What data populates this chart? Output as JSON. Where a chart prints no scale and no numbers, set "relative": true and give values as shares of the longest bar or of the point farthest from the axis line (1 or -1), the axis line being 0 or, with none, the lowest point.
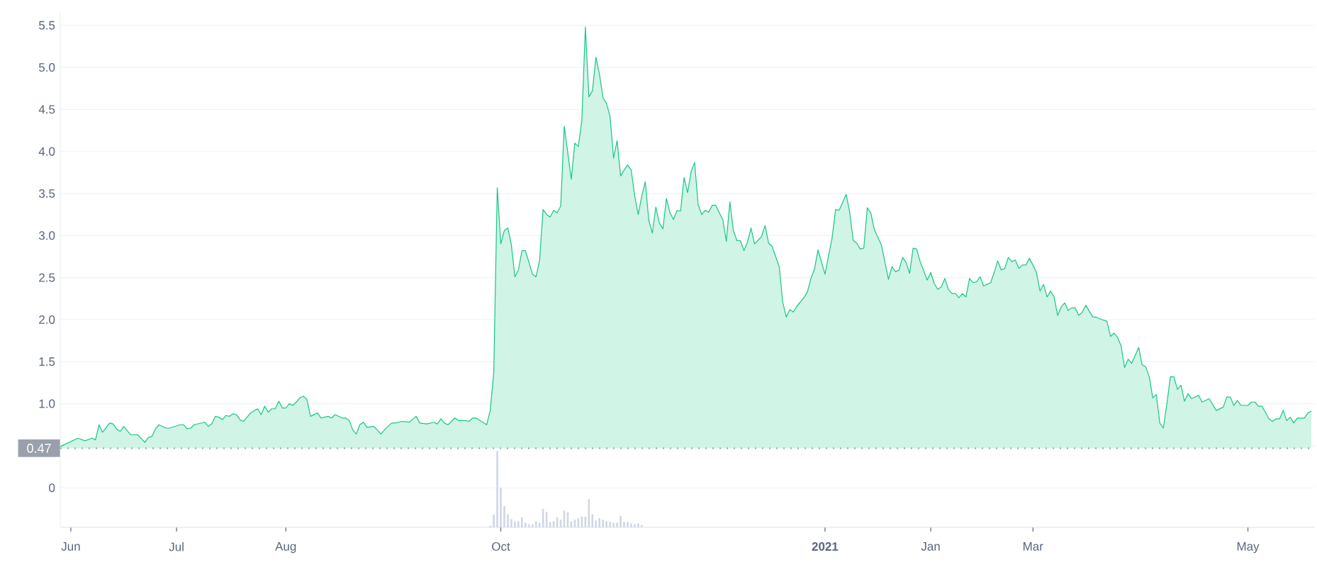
{
  "chart_data": [
    {
      "type": "area",
      "color": "#16c784",
      "grid": "y",
      "tick_labels": "y",
      "xlim": [
        "2020-05-29",
        "2021-05-20"
      ],
      "ylim": [
        -0.47,
        5.65
      ],
      "yticks": [
        0,
        {
          "value": 0.5,
          "label": null
        },
        {
          "value": 1,
          "label": "1.0"
        },
        1.5,
        {
          "value": 2,
          "label": "2.0"
        },
        2.5,
        {
          "value": 3,
          "label": "3.0"
        },
        3.5,
        {
          "value": 4,
          "label": "4.0"
        },
        4.5,
        {
          "value": 5,
          "label": "5.0"
        },
        5.5
      ],
      "ref_lines": [
        {
          "axis": "y",
          "value": 0.47,
          "label": "0.47",
          "line_style": "dotted",
          "color": "#9aa0ab"
        }
      ],
      "x": [
        "2020-05-29",
        "2020-06-03",
        "2020-06-05",
        "2020-06-07",
        "2020-06-08",
        "2020-06-09",
        "2020-06-10",
        "2020-06-12",
        "2020-06-13",
        "2020-06-14",
        "2020-06-15",
        "2020-06-16",
        "2020-06-18",
        "2020-06-20",
        "2020-06-22",
        "2020-06-23",
        "2020-06-24",
        "2020-06-25",
        "2020-06-26",
        "2020-06-28",
        "2020-06-29",
        "2020-07-02",
        "2020-07-03",
        "2020-07-04",
        "2020-07-05",
        "2020-07-06",
        "2020-07-09",
        "2020-07-10",
        "2020-07-11",
        "2020-07-12",
        "2020-07-13",
        "2020-07-14",
        "2020-07-15",
        "2020-07-16",
        "2020-07-17",
        "2020-07-18",
        "2020-07-19",
        "2020-07-20",
        "2020-07-21",
        "2020-07-22",
        "2020-07-24",
        "2020-07-25",
        "2020-07-26",
        "2020-07-27",
        "2020-07-28",
        "2020-07-29",
        "2020-07-30",
        "2020-07-31",
        "2020-08-01",
        "2020-08-02",
        "2020-08-03",
        "2020-08-04",
        "2020-08-05",
        "2020-08-06",
        "2020-08-07",
        "2020-08-08",
        "2020-08-10",
        "2020-08-11",
        "2020-08-13",
        "2020-08-14",
        "2020-08-15",
        "2020-08-17",
        "2020-08-18",
        "2020-08-19",
        "2020-08-20",
        "2020-08-21",
        "2020-08-22",
        "2020-08-23",
        "2020-08-24",
        "2020-08-26",
        "2020-08-28",
        "2020-08-29",
        "2020-08-31",
        "2020-09-01",
        "2020-09-03",
        "2020-09-05",
        "2020-09-07",
        "2020-09-08",
        "2020-09-10",
        "2020-09-12",
        "2020-09-13",
        "2020-09-14",
        "2020-09-15",
        "2020-09-16",
        "2020-09-18",
        "2020-09-19",
        "2020-09-21",
        "2020-09-22",
        "2020-09-23",
        "2020-09-24",
        "2020-09-27",
        "2020-09-28",
        "2020-09-29",
        "2020-09-30",
        "2020-10-01",
        "2020-10-02",
        "2020-10-03",
        "2020-10-04",
        "2020-10-05",
        "2020-10-06",
        "2020-10-07",
        "2020-10-08",
        "2020-10-09",
        "2020-10-10",
        "2020-10-11",
        "2020-10-12",
        "2020-10-13",
        "2020-10-14",
        "2020-10-15",
        "2020-10-16",
        "2020-10-17",
        "2020-10-18",
        "2020-10-19",
        "2020-10-20",
        "2020-10-21",
        "2020-10-22",
        "2020-10-23",
        "2020-10-24",
        "2020-10-25",
        "2020-10-26",
        "2020-10-27",
        "2020-10-28",
        "2020-10-29",
        "2020-10-30",
        "2020-10-31",
        "2020-11-01",
        "2020-11-02",
        "2020-11-03",
        "2020-11-04",
        "2020-11-05",
        "2020-11-06",
        "2020-11-07",
        "2020-11-08",
        "2020-11-09",
        "2020-11-10",
        "2020-11-11",
        "2020-11-12",
        "2020-11-13",
        "2020-11-14",
        "2020-11-15",
        "2020-11-16",
        "2020-11-17",
        "2020-11-18",
        "2020-11-19",
        "2020-11-20",
        "2020-11-21",
        "2020-11-22",
        "2020-11-23",
        "2020-11-24",
        "2020-11-25",
        "2020-11-26",
        "2020-11-27",
        "2020-11-28",
        "2020-11-29",
        "2020-11-30",
        "2020-12-01",
        "2020-12-02",
        "2020-12-03",
        "2020-12-04",
        "2020-12-05",
        "2020-12-06",
        "2020-12-07",
        "2020-12-08",
        "2020-12-09",
        "2020-12-10",
        "2020-12-11",
        "2020-12-12",
        "2020-12-14",
        "2020-12-15",
        "2020-12-16",
        "2020-12-17",
        "2020-12-19",
        "2020-12-20",
        "2020-12-21",
        "2020-12-22",
        "2020-12-23",
        "2020-12-24",
        "2020-12-26",
        "2020-12-27",
        "2020-12-28",
        "2020-12-29",
        "2020-12-30",
        "2021-01-01",
        "2021-01-02",
        "2021-01-03",
        "2021-01-04",
        "2021-01-05",
        "2021-01-07",
        "2021-01-08",
        "2021-01-09",
        "2021-01-10",
        "2021-01-11",
        "2021-01-12",
        "2021-01-13",
        "2021-01-14",
        "2021-01-15",
        "2021-01-17",
        "2021-01-19",
        "2021-01-20",
        "2021-01-21",
        "2021-01-22",
        "2021-01-23",
        "2021-01-24",
        "2021-01-25",
        "2021-01-26",
        "2021-01-27",
        "2021-01-28",
        "2021-01-30",
        "2021-01-31",
        "2021-02-01",
        "2021-02-02",
        "2021-02-03",
        "2021-02-04",
        "2021-02-05",
        "2021-02-06",
        "2021-02-07",
        "2021-02-08",
        "2021-02-09",
        "2021-02-10",
        "2021-02-11",
        "2021-02-12",
        "2021-02-13",
        "2021-02-14",
        "2021-02-15",
        "2021-02-16",
        "2021-02-17",
        "2021-02-18",
        "2021-02-19",
        "2021-02-20",
        "2021-02-21",
        "2021-02-22",
        "2021-02-23",
        "2021-02-24",
        "2021-02-25",
        "2021-02-26",
        "2021-02-27",
        "2021-02-28",
        "2021-03-01",
        "2021-03-02",
        "2021-03-03",
        "2021-03-04",
        "2021-03-05",
        "2021-03-06",
        "2021-03-07",
        "2021-03-08",
        "2021-03-09",
        "2021-03-10",
        "2021-03-11",
        "2021-03-12",
        "2021-03-13",
        "2021-03-14",
        "2021-03-15",
        "2021-03-16",
        "2021-03-17",
        "2021-03-18",
        "2021-03-19",
        "2021-03-20",
        "2021-03-22",
        "2021-03-23",
        "2021-03-24",
        "2021-03-25",
        "2021-03-26",
        "2021-03-27",
        "2021-03-28",
        "2021-03-29",
        "2021-03-31",
        "2021-04-01",
        "2021-04-02",
        "2021-04-03",
        "2021-04-04",
        "2021-04-05",
        "2021-04-06",
        "2021-04-07",
        "2021-04-08",
        "2021-04-09",
        "2021-04-10",
        "2021-04-11",
        "2021-04-12",
        "2021-04-13",
        "2021-04-14",
        "2021-04-15",
        "2021-04-17",
        "2021-04-18",
        "2021-04-20",
        "2021-04-22",
        "2021-04-24",
        "2021-04-25",
        "2021-04-26",
        "2021-04-27",
        "2021-04-28",
        "2021-04-29",
        "2021-05-01",
        "2021-05-02",
        "2021-05-03",
        "2021-05-04",
        "2021-05-05",
        "2021-05-07",
        "2021-05-08",
        "2021-05-09",
        "2021-05-10",
        "2021-05-11",
        "2021-05-12",
        "2021-05-13",
        "2021-05-14",
        "2021-05-15",
        "2021-05-16",
        "2021-05-17",
        "2021-05-18",
        "2021-05-19"
      ],
      "values": [
        0.49,
        0.59,
        0.56,
        0.59,
        0.57,
        0.75,
        0.66,
        0.77,
        0.76,
        0.7,
        0.67,
        0.73,
        0.63,
        0.63,
        0.54,
        0.6,
        0.61,
        0.7,
        0.75,
        0.71,
        0.71,
        0.75,
        0.75,
        0.7,
        0.71,
        0.75,
        0.78,
        0.73,
        0.76,
        0.85,
        0.84,
        0.81,
        0.86,
        0.85,
        0.88,
        0.87,
        0.81,
        0.79,
        0.84,
        0.89,
        0.94,
        0.87,
        0.97,
        0.9,
        0.94,
        0.94,
        1.03,
        0.95,
        0.95,
        1.0,
        0.98,
        1.02,
        1.07,
        1.09,
        1.05,
        0.85,
        0.89,
        0.83,
        0.85,
        0.83,
        0.87,
        0.83,
        0.83,
        0.8,
        0.69,
        0.64,
        0.75,
        0.78,
        0.72,
        0.73,
        0.64,
        0.69,
        0.77,
        0.77,
        0.79,
        0.78,
        0.85,
        0.77,
        0.76,
        0.78,
        0.76,
        0.82,
        0.77,
        0.75,
        0.83,
        0.8,
        0.8,
        0.79,
        0.83,
        0.83,
        0.75,
        0.92,
        1.37,
        3.57,
        2.9,
        3.06,
        3.09,
        2.89,
        2.51,
        2.59,
        2.82,
        2.82,
        2.68,
        2.54,
        2.51,
        2.7,
        3.31,
        3.25,
        3.22,
        3.3,
        3.27,
        3.35,
        4.3,
        3.99,
        3.67,
        4.1,
        4.06,
        4.37,
        5.48,
        4.65,
        4.72,
        5.12,
        4.92,
        4.64,
        4.57,
        4.42,
        3.92,
        4.13,
        3.71,
        3.78,
        3.84,
        3.78,
        3.47,
        3.25,
        3.47,
        3.64,
        3.18,
        3.03,
        3.34,
        3.15,
        3.08,
        3.44,
        3.27,
        3.19,
        3.3,
        3.29,
        3.69,
        3.51,
        3.76,
        3.87,
        3.37,
        3.25,
        3.3,
        3.28,
        3.36,
        3.36,
        3.27,
        3.19,
        2.93,
        3.4,
        3.06,
        2.94,
        2.94,
        2.82,
        2.92,
        3.09,
        2.9,
        2.99,
        3.12,
        2.91,
        2.87,
        2.63,
        2.21,
        2.03,
        2.12,
        2.09,
        2.16,
        2.26,
        2.33,
        2.49,
        2.6,
        2.83,
        2.54,
        2.76,
        2.97,
        3.31,
        3.3,
        3.49,
        3.28,
        2.94,
        2.91,
        2.84,
        2.85,
        3.33,
        3.27,
        3.07,
        2.89,
        2.48,
        2.63,
        2.57,
        2.59,
        2.74,
        2.68,
        2.55,
        2.85,
        2.84,
        2.69,
        2.47,
        2.56,
        2.43,
        2.36,
        2.39,
        2.49,
        2.36,
        2.31,
        2.31,
        2.26,
        2.31,
        2.27,
        2.49,
        2.44,
        2.45,
        2.51,
        2.4,
        2.42,
        2.44,
        2.56,
        2.7,
        2.59,
        2.61,
        2.74,
        2.69,
        2.71,
        2.61,
        2.65,
        2.65,
        2.73,
        2.65,
        2.56,
        2.34,
        2.42,
        2.27,
        2.34,
        2.27,
        2.05,
        2.15,
        2.2,
        2.11,
        2.14,
        2.14,
        2.05,
        2.09,
        2.17,
        2.1,
        2.03,
        2.03,
        2.01,
        1.98,
        1.8,
        1.84,
        1.79,
        1.69,
        1.43,
        1.53,
        1.48,
        1.67,
        1.46,
        1.44,
        1.32,
        1.07,
        1.11,
        0.77,
        0.71,
        1.0,
        1.32,
        1.32,
        1.17,
        1.22,
        1.03,
        1.12,
        1.06,
        1.1,
        1.02,
        1.06,
        0.92,
        0.96,
        1.08,
        1.08,
        0.98,
        1.04,
        0.98,
        0.98,
        1.02,
        1.02,
        0.97,
        0.97,
        0.82,
        0.79,
        0.82,
        0.82,
        0.92,
        0.8,
        0.84,
        0.77,
        0.83,
        0.83,
        0.83,
        0.89,
        0.91
      ]
    },
    {
      "type": "bar",
      "relative": true,
      "color": "#cfd6e4",
      "tick_labels": "x",
      "xlim": [
        "2020-05-29",
        "2021-05-20"
      ],
      "xticks": [
        {
          "value": "2020-06-01",
          "label": "Jun"
        },
        {
          "value": "2020-07-01",
          "label": "Jul"
        },
        {
          "value": "2020-08-01",
          "label": "Aug"
        },
        {
          "value": "2020-10-01",
          "label": "Oct"
        },
        {
          "value": "2021-01-01",
          "label": "**2021**"
        },
        {
          "value": "2021-01-31",
          "label": "Jan"
        },
        {
          "value": "2021-03-01",
          "label": "Mar"
        },
        {
          "value": "2021-05-01",
          "label": "May"
        }
      ],
      "x": [
        "2020-09-28",
        "2020-09-29",
        "2020-09-30",
        "2020-10-01",
        "2020-10-02",
        "2020-10-03",
        "2020-10-04",
        "2020-10-05",
        "2020-10-06",
        "2020-10-07",
        "2020-10-08",
        "2020-10-09",
        "2020-10-10",
        "2020-10-11",
        "2020-10-12",
        "2020-10-13",
        "2020-10-14",
        "2020-10-15",
        "2020-10-16",
        "2020-10-17",
        "2020-10-18",
        "2020-10-19",
        "2020-10-20",
        "2020-10-21",
        "2020-10-22",
        "2020-10-23",
        "2020-10-24",
        "2020-10-25",
        "2020-10-26",
        "2020-10-27",
        "2020-10-28",
        "2020-10-29",
        "2020-10-30",
        "2020-10-31",
        "2020-11-01",
        "2020-11-02",
        "2020-11-03",
        "2020-11-04",
        "2020-11-05",
        "2020-11-06",
        "2020-11-07",
        "2020-11-08",
        "2020-11-09",
        "2020-11-10"
      ],
      "values": [
        0.02,
        0.17,
        1.0,
        0.52,
        0.28,
        0.17,
        0.11,
        0.08,
        0.08,
        0.13,
        0.06,
        0.04,
        0.04,
        0.08,
        0.06,
        0.24,
        0.2,
        0.07,
        0.08,
        0.13,
        0.1,
        0.22,
        0.2,
        0.08,
        0.1,
        0.12,
        0.14,
        0.14,
        0.37,
        0.17,
        0.09,
        0.12,
        0.1,
        0.08,
        0.07,
        0.06,
        0.06,
        0.15,
        0.07,
        0.07,
        0.05,
        0.04,
        0.05,
        0.03
      ]
    }
  ]
}
